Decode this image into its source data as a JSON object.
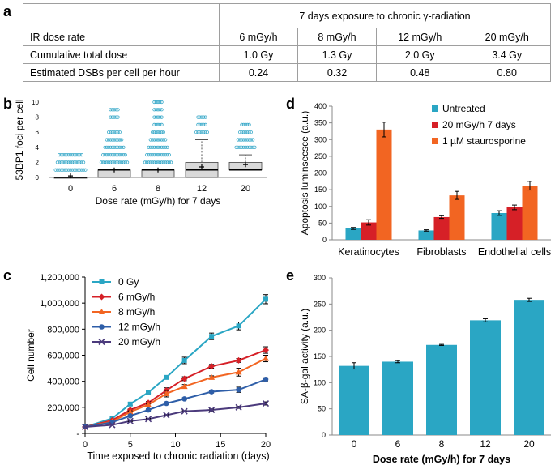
{
  "panel_labels": {
    "a": "a",
    "b": "b",
    "c": "c",
    "d": "d",
    "e": "e"
  },
  "table": {
    "title": "7 days exposure to chronic γ-radiation",
    "rows": [
      {
        "label": "IR dose rate",
        "cells": [
          "6 mGy/h",
          "8 mGy/h",
          "12 mGy/h",
          "20 mGy/h"
        ]
      },
      {
        "label": "Cumulative total dose",
        "cells": [
          "1.0 Gy",
          "1.3 Gy",
          "2.0 Gy",
          "3.4 Gy"
        ]
      },
      {
        "label": "Estimated DSBs per cell per hour",
        "cells": [
          "0.24",
          "0.32",
          "0.48",
          "0.80"
        ]
      }
    ]
  },
  "colors": {
    "teal": "#2aa6c4",
    "red": "#d62027",
    "orange": "#f26522",
    "blue": "#2e5ea8",
    "purple": "#4b3a7c",
    "box_fill": "#d9d9d9",
    "dots": "#39a9c9"
  },
  "chart_data": [
    {
      "id": "b",
      "type": "box",
      "ylabel": "53BP1 foci per cell",
      "xlabel": "Dose rate (mGy/h) for 7 days",
      "ylim": [
        0,
        10
      ],
      "yticks": [
        "0",
        "2",
        "4",
        "6",
        "8",
        "10"
      ],
      "categories": [
        "0",
        "6",
        "8",
        "12",
        "20"
      ],
      "boxes": [
        {
          "q1": 0,
          "median": 0,
          "q3": 0,
          "mean": 0.2,
          "whisker_high": 0,
          "outliers": [
            1,
            2,
            3
          ]
        },
        {
          "q1": 0,
          "median": 1,
          "q3": 1,
          "mean": 1.0,
          "whisker_high": 1,
          "outliers": [
            2,
            3,
            4,
            5,
            6,
            8,
            9
          ]
        },
        {
          "q1": 0,
          "median": 1,
          "q3": 1,
          "mean": 1.0,
          "whisker_high": 1,
          "outliers": [
            2,
            3,
            4,
            5,
            6,
            7,
            8,
            9,
            10
          ]
        },
        {
          "q1": 0,
          "median": 1,
          "q3": 2,
          "mean": 1.4,
          "whisker_high": 5,
          "outliers": [
            6,
            7,
            8
          ]
        },
        {
          "q1": 1,
          "median": 1,
          "q3": 2,
          "mean": 1.7,
          "whisker_high": 3,
          "outliers": [
            4,
            5,
            6,
            7
          ]
        }
      ]
    },
    {
      "id": "c",
      "type": "line",
      "xlabel": "Time exposed to chronic radiation (days)",
      "ylabel": "Cell number",
      "xlim": [
        0,
        20
      ],
      "xticks": [
        "0",
        "5",
        "10",
        "15",
        "20"
      ],
      "ylim": [
        0,
        1200000
      ],
      "yticks": [
        "-",
        "200,000",
        "400,000",
        "600,000",
        "800,000",
        "1,000,000",
        "1,200,000"
      ],
      "x": [
        0,
        3,
        5,
        7,
        9,
        11,
        14,
        17,
        20
      ],
      "series": [
        {
          "name": "0 Gy",
          "color": "#2aa6c4",
          "marker": "square",
          "values": [
            50000,
            115000,
            225000,
            315000,
            430000,
            560000,
            745000,
            825000,
            1030000
          ],
          "errors": [
            0,
            0,
            10000,
            8000,
            8000,
            25000,
            25000,
            30000,
            35000
          ]
        },
        {
          "name": "6 mGy/h",
          "color": "#d62027",
          "marker": "diamond",
          "values": [
            50000,
            100000,
            180000,
            235000,
            330000,
            420000,
            515000,
            560000,
            640000
          ],
          "errors": [
            0,
            0,
            8000,
            10000,
            20000,
            15000,
            15000,
            15000,
            25000
          ]
        },
        {
          "name": "8 mGy/h",
          "color": "#f26522",
          "marker": "triangle",
          "values": [
            50000,
            90000,
            165000,
            220000,
            305000,
            360000,
            430000,
            470000,
            575000
          ],
          "errors": [
            0,
            0,
            8000,
            10000,
            25000,
            15000,
            12000,
            30000,
            25000
          ]
        },
        {
          "name": "12 mGy/h",
          "color": "#2e5ea8",
          "marker": "circle",
          "values": [
            50000,
            85000,
            135000,
            180000,
            230000,
            265000,
            320000,
            335000,
            415000
          ],
          "errors": [
            0,
            0,
            6000,
            8000,
            8000,
            8000,
            10000,
            20000,
            12000
          ]
        },
        {
          "name": "20 mGy/h",
          "color": "#4b3a7c",
          "marker": "x",
          "values": [
            50000,
            65000,
            95000,
            110000,
            140000,
            170000,
            180000,
            200000,
            230000
          ],
          "errors": [
            0,
            0,
            5000,
            5000,
            5000,
            5000,
            8000,
            8000,
            12000
          ]
        }
      ]
    },
    {
      "id": "d",
      "type": "bar",
      "ylabel": "Apoptosis luminsecsce (a.u.)",
      "ylim": [
        0,
        400
      ],
      "yticks": [
        "0",
        "50",
        "100",
        "150",
        "200",
        "250",
        "300",
        "350",
        "400"
      ],
      "categories": [
        "Keratinocytes",
        "Fibroblasts",
        "Endothelial cells"
      ],
      "series": [
        {
          "name": "Untreated",
          "color": "#2aa6c4",
          "values": [
            34,
            28,
            80
          ],
          "errors": [
            3,
            2,
            7
          ]
        },
        {
          "name": "20 mGy/h 7 days",
          "color": "#d62027",
          "values": [
            52,
            68,
            97
          ],
          "errors": [
            8,
            4,
            7
          ]
        },
        {
          "name": "1 µM staurosporine",
          "color": "#f26522",
          "values": [
            330,
            133,
            162
          ],
          "errors": [
            22,
            12,
            13
          ]
        }
      ]
    },
    {
      "id": "e",
      "type": "bar",
      "ylabel": "SA-β-gal activity  (a.u.)",
      "xlabel": "Dose rate (mGy/h) for 7 days",
      "ylim": [
        0,
        300
      ],
      "yticks": [
        "0",
        "50",
        "100",
        "150",
        "200",
        "250",
        "300"
      ],
      "categories": [
        "0",
        "6",
        "8",
        "12",
        "20"
      ],
      "values": [
        132,
        140,
        172,
        219,
        258
      ],
      "errors": [
        6,
        2,
        1,
        3,
        3
      ],
      "color": "#2aa6c4"
    }
  ]
}
